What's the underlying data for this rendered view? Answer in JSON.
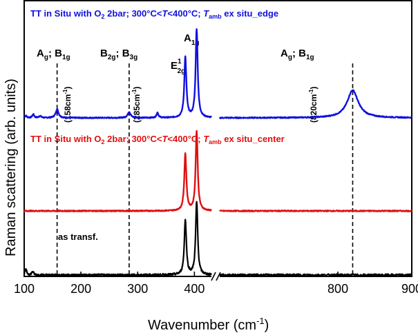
{
  "chart_data": {
    "type": "line",
    "xlabel": "Wavenumber (cm",
    "xlabel_sup": "-1",
    "xlabel_close": ")",
    "ylabel": "Raman scattering (arb. units)",
    "axis_break": true,
    "segments": [
      {
        "xlim": [
          100,
          430
        ],
        "ticks": [
          100,
          200,
          300,
          400
        ],
        "tick_labels": [
          "100",
          "200",
          "300",
          "400"
        ]
      },
      {
        "xlim": [
          640,
          900
        ],
        "ticks": [
          800,
          900
        ],
        "tick_labels": [
          "800",
          "900"
        ]
      }
    ],
    "series": [
      {
        "name": "edge",
        "title_parts": [
          "TT in Situ with O",
          "2",
          " 2bar; 300°C<",
          "T",
          "<400°C; ",
          "T",
          "amb",
          " ex situ_edge"
        ],
        "color": "#1010e0",
        "baseline": 0.06,
        "peaks": [
          {
            "x": 103,
            "h": 0.012,
            "w": 2
          },
          {
            "x": 116,
            "h": 0.02,
            "w": 2
          },
          {
            "x": 128,
            "h": 0.012,
            "w": 2
          },
          {
            "x": 158,
            "h": 0.05,
            "w": 3
          },
          {
            "x": 285,
            "h": 0.035,
            "w": 3
          },
          {
            "x": 335,
            "h": 0.03,
            "w": 2
          },
          {
            "x": 384,
            "h": 0.35,
            "w": 2.2
          },
          {
            "x": 404,
            "h": 0.51,
            "w": 2.2
          },
          {
            "x": 820,
            "h": 0.16,
            "w": 9
          }
        ]
      },
      {
        "name": "center",
        "title_parts": [
          "TT in Situ with O",
          "2",
          " 2bar; 300°C<",
          "T",
          "<400°C; ",
          "T",
          "amb",
          " ex situ_center"
        ],
        "color": "#e01010",
        "baseline": 0.0,
        "peaks": [
          {
            "x": 384,
            "h": 0.33,
            "w": 2.2
          },
          {
            "x": 404,
            "h": 0.46,
            "w": 2.2
          }
        ]
      },
      {
        "name": "as transf.",
        "label": "as transf.",
        "color": "#000000",
        "baseline": 0.0,
        "peaks": [
          {
            "x": 103,
            "h": 0.03,
            "w": 2
          },
          {
            "x": 115,
            "h": 0.02,
            "w": 2
          },
          {
            "x": 384,
            "h": 0.32,
            "w": 2.2
          },
          {
            "x": 404,
            "h": 0.42,
            "w": 2.2
          }
        ]
      }
    ],
    "annotations": [
      {
        "x": 158,
        "main1": "A",
        "sub1": "g",
        "sep": "; ",
        "main2": "B",
        "sub2": "1g",
        "wn": "(158cm",
        "wn_sup": "-1",
        "wn_close": ")"
      },
      {
        "x": 285,
        "main1": "B",
        "sub1": "2g",
        "sep": "; ",
        "main2": "B",
        "sub2": "3g",
        "wn": "(285cm",
        "wn_sup": "-1",
        "wn_close": ")"
      },
      {
        "x": 820,
        "main1": "A",
        "sub1": "g",
        "sep": "; ",
        "main2": "B",
        "sub2": "1g",
        "wn": "(820cm",
        "wn_sup": "-1",
        "wn_close": ")"
      }
    ],
    "peak_labels": [
      {
        "x": 384,
        "main": "E",
        "sup": "1",
        "sub": "2g"
      },
      {
        "x": 404,
        "main": "A",
        "sub": "1g"
      }
    ]
  }
}
